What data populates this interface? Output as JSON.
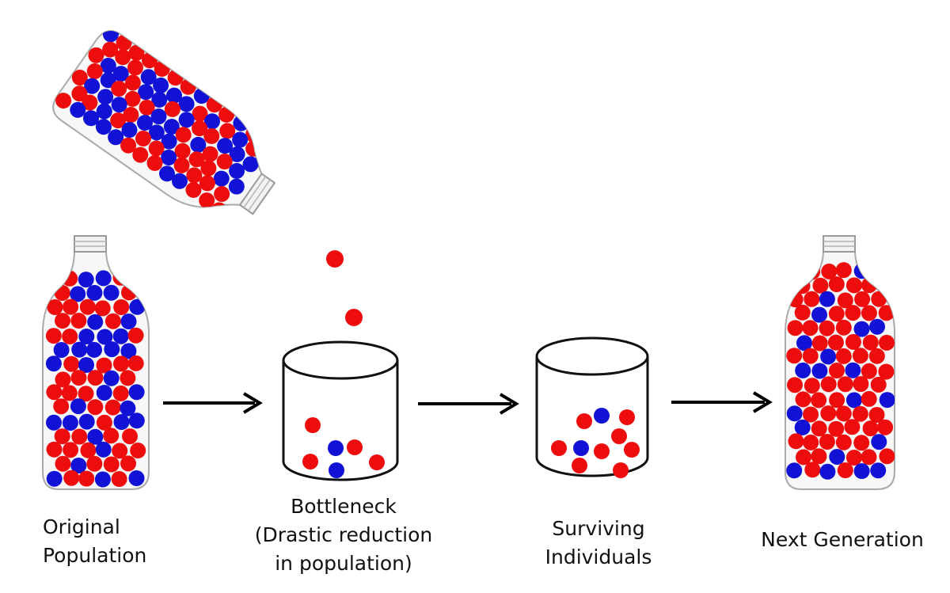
{
  "colors": {
    "red_bead": "#ee0d0d",
    "blue_bead": "#1212d6",
    "glass_outline": "#aaaaaa",
    "cup_outline": "#111111",
    "arrow": "#000000"
  },
  "icons": {
    "bead_red": "red-bead-icon",
    "bead_blue": "blue-bead-icon",
    "arrow": "arrow-right-icon"
  },
  "labels": {
    "original": [
      "Original",
      "Population"
    ],
    "bottleneck": [
      "Bottleneck",
      "(Drastic reduction",
      "in population)"
    ],
    "surviving": [
      "Surviving",
      "Individuals"
    ],
    "next": [
      "Next Generation"
    ]
  }
}
